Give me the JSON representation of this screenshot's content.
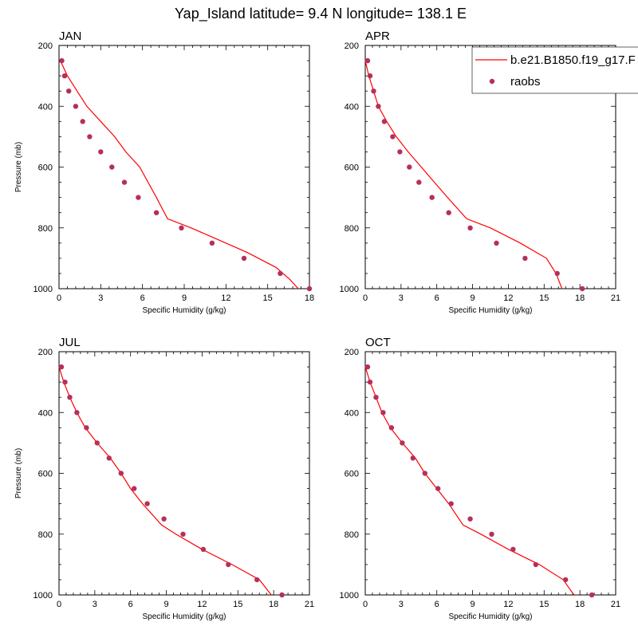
{
  "colors": {
    "model": "#ff0000",
    "obs": "#b5305a"
  },
  "chart_data": {
    "title": "Yap_Island  latitude= 9.4 N longitude= 138.1 E",
    "legend": {
      "model": "b.e21.B1850.f19_g17.F",
      "obs": "raobs",
      "position": "top-right of APR panel"
    },
    "panels": [
      {
        "type": "line+scatter",
        "title": "JAN",
        "xlabel": "Specific Humidity (g/kg)",
        "ylabel": "Pressure (mb)",
        "xlim": [
          0,
          18
        ],
        "xticks": [
          0,
          3,
          6,
          9,
          12,
          15,
          18
        ],
        "ylim": [
          1000,
          200
        ],
        "yticks": [
          200,
          400,
          600,
          800,
          1000
        ],
        "model": {
          "x": [
            0.1,
            0.6,
            1.3,
            2.0,
            3.0,
            4.0,
            4.8,
            5.8,
            7.0,
            7.8,
            9.5,
            11.0,
            13.5,
            15.6,
            16.6,
            17.2
          ],
          "p": [
            250,
            300,
            350,
            400,
            450,
            500,
            550,
            600,
            700,
            770,
            800,
            830,
            880,
            930,
            970,
            1000
          ]
        },
        "obs": {
          "x": [
            0.2,
            0.4,
            0.7,
            1.2,
            1.7,
            2.2,
            3.0,
            3.8,
            4.7,
            5.7,
            7.0,
            8.8,
            11.0,
            13.3,
            15.9,
            18.0
          ],
          "p": [
            250,
            300,
            350,
            400,
            450,
            500,
            550,
            600,
            650,
            700,
            750,
            800,
            850,
            900,
            950,
            1000
          ]
        }
      },
      {
        "type": "line+scatter",
        "title": "APR",
        "xlabel": "Specific Humidity (g/kg)",
        "ylabel": "",
        "xlim": [
          0,
          21
        ],
        "xticks": [
          0,
          3,
          6,
          9,
          12,
          15,
          18,
          21
        ],
        "ylim": [
          1000,
          200
        ],
        "yticks": [
          200,
          400,
          600,
          800,
          1000
        ],
        "model": {
          "x": [
            0.0,
            0.3,
            0.7,
            1.1,
            1.8,
            2.6,
            3.6,
            4.7,
            5.8,
            6.9,
            8.5,
            10.5,
            13.0,
            15.2,
            16.0,
            16.5
          ],
          "p": [
            250,
            300,
            350,
            400,
            450,
            500,
            550,
            600,
            650,
            700,
            770,
            800,
            850,
            900,
            950,
            1000
          ]
        },
        "obs": {
          "x": [
            0.2,
            0.4,
            0.7,
            1.1,
            1.6,
            2.3,
            2.9,
            3.7,
            4.5,
            5.6,
            7.0,
            8.8,
            11.0,
            13.4,
            16.1,
            18.2
          ],
          "p": [
            250,
            300,
            350,
            400,
            450,
            500,
            550,
            600,
            650,
            700,
            750,
            800,
            850,
            900,
            950,
            1000
          ]
        }
      },
      {
        "type": "line+scatter",
        "title": "JUL",
        "xlabel": "Specific Humidity (g/kg)",
        "ylabel": "Pressure (mb)",
        "xlim": [
          0,
          21
        ],
        "xticks": [
          0,
          3,
          6,
          9,
          12,
          15,
          18,
          21
        ],
        "ylim": [
          1000,
          200
        ],
        "yticks": [
          200,
          400,
          600,
          800,
          1000
        ],
        "model": {
          "x": [
            0.0,
            0.4,
            0.9,
            1.5,
            2.2,
            3.2,
            4.3,
            5.2,
            6.0,
            7.0,
            8.6,
            9.8,
            12.0,
            14.5,
            16.8,
            17.8
          ],
          "p": [
            250,
            300,
            350,
            400,
            450,
            500,
            550,
            600,
            650,
            700,
            770,
            800,
            850,
            900,
            950,
            1000
          ]
        },
        "obs": {
          "x": [
            0.2,
            0.5,
            0.9,
            1.5,
            2.3,
            3.2,
            4.2,
            5.2,
            6.3,
            7.4,
            8.8,
            10.4,
            12.1,
            14.2,
            16.6,
            18.7
          ],
          "p": [
            250,
            300,
            350,
            400,
            450,
            500,
            550,
            600,
            650,
            700,
            750,
            800,
            850,
            900,
            950,
            1000
          ]
        }
      },
      {
        "type": "line+scatter",
        "title": "OCT",
        "xlabel": "Specific Humidity (g/kg)",
        "ylabel": "",
        "xlim": [
          0,
          21
        ],
        "xticks": [
          0,
          3,
          6,
          9,
          12,
          15,
          18,
          21
        ],
        "ylim": [
          1000,
          200
        ],
        "yticks": [
          200,
          400,
          600,
          800,
          1000
        ],
        "model": {
          "x": [
            0.0,
            0.4,
            0.9,
            1.4,
            2.1,
            3.1,
            4.2,
            5.0,
            6.0,
            7.0,
            8.2,
            9.7,
            12.0,
            14.6,
            16.6,
            17.5
          ],
          "p": [
            250,
            300,
            350,
            400,
            450,
            500,
            550,
            600,
            650,
            700,
            770,
            800,
            850,
            900,
            950,
            1000
          ]
        },
        "obs": {
          "x": [
            0.2,
            0.4,
            0.9,
            1.5,
            2.2,
            3.1,
            4.0,
            5.0,
            6.1,
            7.2,
            8.8,
            10.6,
            12.4,
            14.3,
            16.8,
            19.0
          ],
          "p": [
            250,
            300,
            350,
            400,
            450,
            500,
            550,
            600,
            650,
            700,
            750,
            800,
            850,
            900,
            950,
            1000
          ]
        }
      }
    ]
  }
}
